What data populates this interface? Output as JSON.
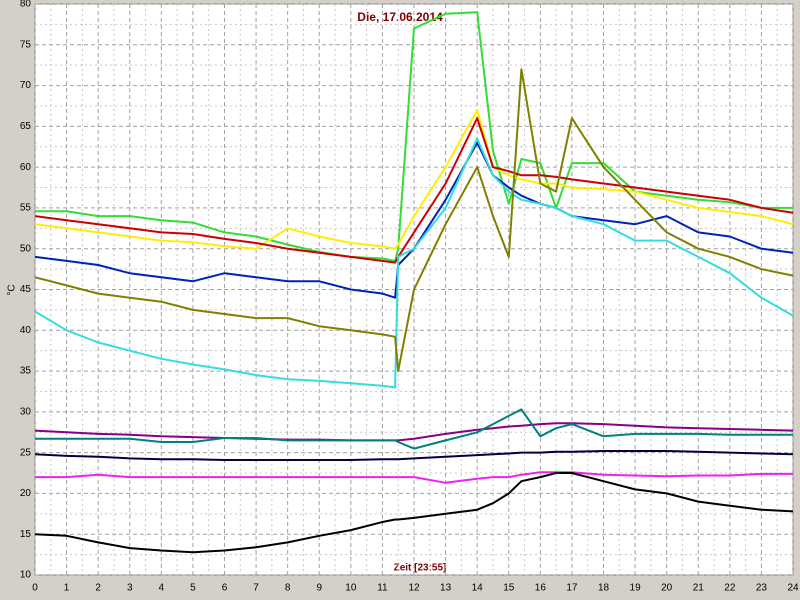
{
  "chart_data": {
    "type": "line",
    "title": "Die, 17.06.2014",
    "x_label": "Zeit [23:55]",
    "y_label": "°C",
    "x": [
      0,
      1,
      2,
      3,
      4,
      5,
      6,
      7,
      8,
      9,
      10,
      11,
      11.4,
      11.5,
      12,
      13,
      14,
      14.5,
      15,
      15.4,
      16,
      16.5,
      17,
      18,
      19,
      20,
      21,
      22,
      23,
      24
    ],
    "series": [
      {
        "color": "#33dd33",
        "values": [
          54.6,
          54.6,
          54,
          54,
          53.5,
          53.2,
          52,
          51.5,
          50.5,
          49.6,
          49,
          48.8,
          48.5,
          50,
          77,
          78.8,
          79,
          62,
          55.5,
          61,
          60.5,
          55,
          60.5,
          60.5,
          57,
          56.5,
          56,
          55.7,
          55,
          55
        ]
      },
      {
        "color": "#ffee00",
        "values": [
          53,
          52.5,
          52,
          51.5,
          51,
          50.8,
          50.3,
          50,
          52.5,
          51.5,
          50.7,
          50.3,
          50,
          50.5,
          54,
          60,
          67,
          60,
          59,
          58.5,
          58,
          58,
          57.5,
          57.3,
          57,
          56,
          55,
          54.5,
          54,
          53
        ]
      },
      {
        "color": "#cc0000",
        "values": [
          54,
          53.5,
          53,
          52.5,
          52,
          51.8,
          51.2,
          50.7,
          50,
          49.5,
          49,
          48.5,
          48.3,
          49,
          52,
          58,
          66,
          60,
          59.5,
          59,
          59,
          58.8,
          58.5,
          58,
          57.5,
          57,
          56.5,
          56,
          55,
          54.4
        ]
      },
      {
        "color": "#0022bb",
        "values": [
          49,
          48.5,
          48,
          47,
          46.5,
          46,
          47,
          46.5,
          46,
          46,
          45,
          44.5,
          44,
          48,
          50,
          56,
          63,
          59,
          57.5,
          56.5,
          55.5,
          55,
          54,
          53.5,
          53,
          54,
          52,
          51.5,
          50,
          49.5
        ]
      },
      {
        "color": "#33dddd",
        "values": [
          42.3,
          40,
          38.5,
          37.5,
          36.5,
          35.8,
          35.2,
          34.5,
          34,
          33.8,
          33.5,
          33.2,
          33,
          49,
          50,
          55,
          63.5,
          59,
          57,
          56,
          55.5,
          55,
          54,
          53,
          51,
          51,
          49,
          47,
          44,
          41.8
        ]
      },
      {
        "color": "#808000",
        "values": [
          46.5,
          45.5,
          44.5,
          44,
          43.5,
          42.5,
          42,
          41.5,
          41.5,
          40.5,
          40,
          39.5,
          39.2,
          35,
          45,
          53,
          60,
          54,
          49,
          72,
          58,
          57,
          66,
          60,
          56,
          52,
          50,
          49,
          47.5,
          46.7
        ]
      },
      {
        "color": "#880088",
        "values": [
          27.7,
          27.5,
          27.3,
          27.2,
          27,
          26.9,
          26.8,
          26.7,
          26.6,
          26.6,
          26.5,
          26.5,
          26.5,
          26.5,
          26.7,
          27.3,
          27.8,
          28,
          28.2,
          28.3,
          28.5,
          28.6,
          28.6,
          28.5,
          28.3,
          28.1,
          28,
          27.9,
          27.8,
          27.7
        ]
      },
      {
        "color": "#008080",
        "values": [
          26.7,
          26.7,
          26.7,
          26.7,
          26.3,
          26.3,
          26.8,
          26.8,
          26.5,
          26.5,
          26.5,
          26.5,
          26.5,
          26.3,
          25.5,
          26.5,
          27.5,
          28.5,
          29.5,
          30.3,
          27,
          28,
          28.5,
          27,
          27.3,
          27.3,
          27.3,
          27.2,
          27.2,
          27.2
        ]
      },
      {
        "color": "#000044",
        "values": [
          24.8,
          24.6,
          24.5,
          24.3,
          24.2,
          24.2,
          24.1,
          24.1,
          24.1,
          24.1,
          24.1,
          24.2,
          24.2,
          24.2,
          24.3,
          24.5,
          24.7,
          24.8,
          24.9,
          25,
          25,
          25.1,
          25.1,
          25.2,
          25.2,
          25.2,
          25.1,
          25,
          24.9,
          24.8
        ]
      },
      {
        "color": "#ee22ee",
        "values": [
          22,
          22,
          22.3,
          22,
          22,
          22,
          22,
          22,
          22,
          22,
          22,
          22,
          22,
          22,
          22,
          21.3,
          21.8,
          22,
          22,
          22.3,
          22.6,
          22.6,
          22.6,
          22.3,
          22.2,
          22.1,
          22.2,
          22.2,
          22.4,
          22.4
        ]
      },
      {
        "color": "#000000",
        "values": [
          15,
          14.8,
          14,
          13.3,
          13,
          12.8,
          13,
          13.4,
          14,
          14.8,
          15.5,
          16.5,
          16.8,
          16.8,
          17,
          17.5,
          18,
          18.8,
          20,
          21.5,
          22,
          22.5,
          22.5,
          21.5,
          20.5,
          20,
          19,
          18.5,
          18,
          17.8
        ]
      }
    ],
    "xlim": [
      0,
      24
    ],
    "xticks": [
      0,
      1,
      2,
      3,
      4,
      5,
      6,
      7,
      8,
      9,
      10,
      11,
      12,
      13,
      14,
      15,
      16,
      17,
      18,
      19,
      20,
      21,
      22,
      23,
      24
    ],
    "ylim": [
      10,
      80
    ],
    "yticks": [
      10,
      15,
      20,
      25,
      30,
      35,
      40,
      45,
      50,
      55,
      60,
      65,
      70,
      75,
      80
    ],
    "grid": true
  }
}
